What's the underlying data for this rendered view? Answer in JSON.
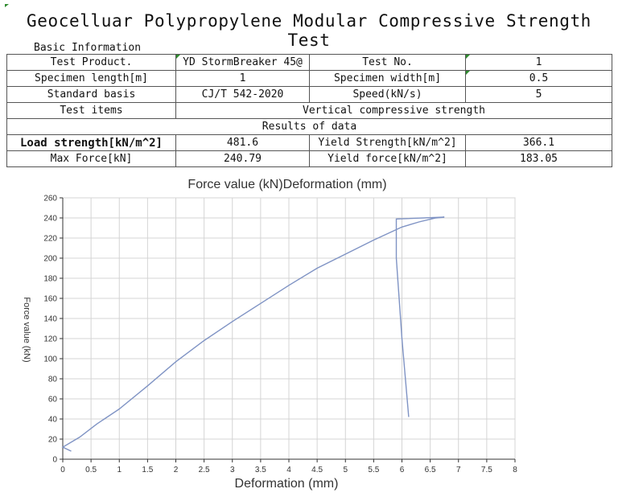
{
  "title": "Geocelluar Polypropylene Modular Compressive Strength Test",
  "section_label": "Basic Information",
  "rows": {
    "test_product_label": "Test Product.",
    "test_product_value": "YD StormBreaker 45@",
    "test_no_label": "Test No.",
    "test_no_value": "1",
    "specimen_length_label": "Specimen length[m]",
    "specimen_length_value": "1",
    "specimen_width_label": "Specimen width[m]",
    "specimen_width_value": "0.5",
    "standard_label": "Standard basis",
    "standard_value": "CJ/T 542-2020",
    "speed_label": "Speed(kN/s)",
    "speed_value": "5",
    "test_items_label": "Test items",
    "test_items_value": "Vertical compressive strength",
    "results_header": "Results of data",
    "load_strength_label": "Load strength[kN/m^2]",
    "load_strength_value": "481.6",
    "yield_strength_label": "Yield Strength[kN/m^2]",
    "yield_strength_value": "366.1",
    "max_force_label": "Max Force[kN]",
    "max_force_value": "240.79",
    "yield_force_label": "Yield force[kN/m^2]",
    "yield_force_value": "183.05"
  },
  "colors": {
    "line": "#7f93c4",
    "grid": "#d4d4d4",
    "tick_mark": "#2e8b2e"
  },
  "chart_data": {
    "type": "line",
    "title": "Force value (kN)Deformation (mm)",
    "xlabel": "Deformation (mm)",
    "ylabel": "Force value (kN)",
    "xlim": [
      0,
      8
    ],
    "ylim": [
      0,
      260
    ],
    "xticks": [
      "0",
      "0.5",
      "1",
      "1.5",
      "2",
      "2.5",
      "3",
      "3.5",
      "4",
      "4.5",
      "5",
      "5.5",
      "6",
      "6.5",
      "7",
      "7.5",
      "8"
    ],
    "yticks": [
      "0",
      "20",
      "40",
      "60",
      "80",
      "100",
      "120",
      "140",
      "160",
      "180",
      "200",
      "220",
      "240",
      "260"
    ],
    "grid": true,
    "series": [
      {
        "x": [
          0.15,
          0,
          0.3,
          0.6,
          1.0,
          1.5,
          2.0,
          2.5,
          3.0,
          3.5,
          4.0,
          4.5,
          5.0,
          5.5,
          6.0,
          6.3,
          6.6,
          6.75,
          5.9,
          5.9,
          6.0,
          6.12
        ],
        "y": [
          8,
          12,
          22,
          35,
          50,
          73,
          97,
          118,
          137,
          155,
          173,
          190,
          204,
          218,
          231,
          236,
          240,
          240.79,
          239,
          200,
          120,
          42
        ]
      }
    ]
  }
}
